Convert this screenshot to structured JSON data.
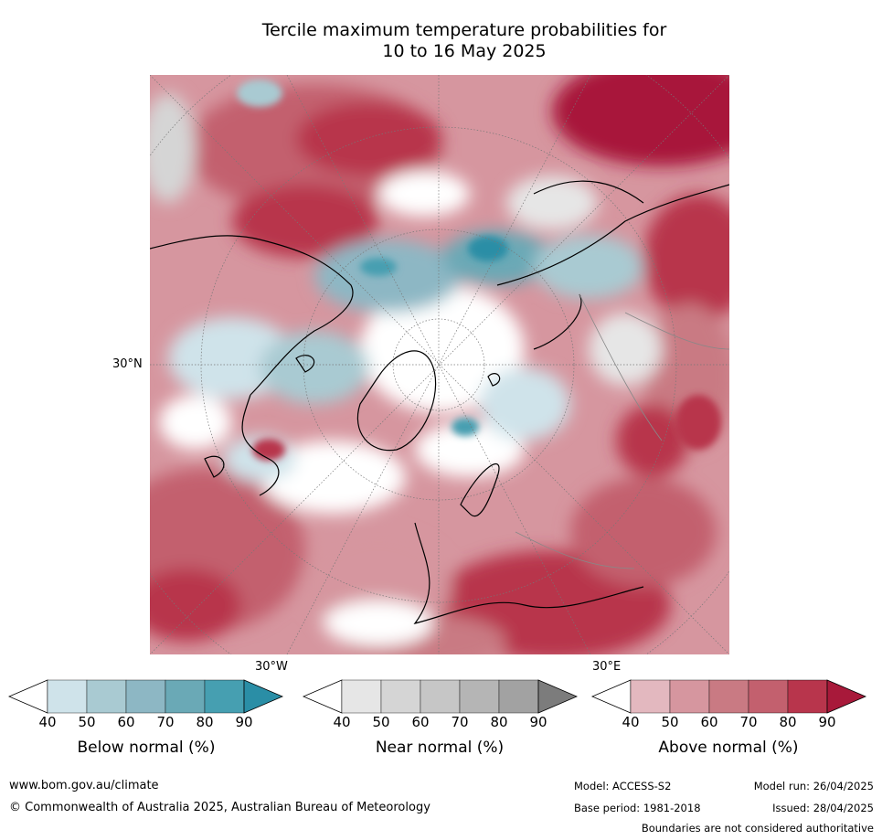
{
  "title": {
    "line1": "Tercile maximum temperature probabilities for",
    "line2": "10 to 16 May 2025"
  },
  "map": {
    "projection": "north-polar-stereographic",
    "graticule_labels": {
      "lat_left": "30°N",
      "lon_bottom_left": "30°W",
      "lon_bottom_right": "30°E"
    }
  },
  "colorbars": [
    {
      "label": "Below normal (%)",
      "ticks": [
        "40",
        "50",
        "60",
        "70",
        "80",
        "90"
      ],
      "colors": [
        "#cfe3ea",
        "#a9cad2",
        "#8db7c4",
        "#6aa9b6",
        "#469fb1",
        "#2a8ea6"
      ]
    },
    {
      "label": "Near normal (%)",
      "ticks": [
        "40",
        "50",
        "60",
        "70",
        "80",
        "90"
      ],
      "colors": [
        "#e6e6e6",
        "#d5d5d5",
        "#c6c6c6",
        "#b5b5b5",
        "#a2a2a2",
        "#7c7c7c"
      ]
    },
    {
      "label": "Above normal (%)",
      "ticks": [
        "40",
        "50",
        "60",
        "70",
        "80",
        "90"
      ],
      "colors": [
        "#e3b8bf",
        "#d6969f",
        "#c97a83",
        "#c3606e",
        "#b8354c",
        "#a8193a"
      ]
    }
  ],
  "footer": {
    "url": "www.bom.gov.au/climate",
    "copyright": "© Commonwealth of Australia 2025, Australian Bureau of Meteorology",
    "model": "Model: ACCESS-S2",
    "base_period": "Base period: 1981-2018",
    "model_run": "Model run: 26/04/2025",
    "issued": "Issued: 28/04/2025",
    "disclaimer": "Boundaries are not considered authoritative"
  }
}
